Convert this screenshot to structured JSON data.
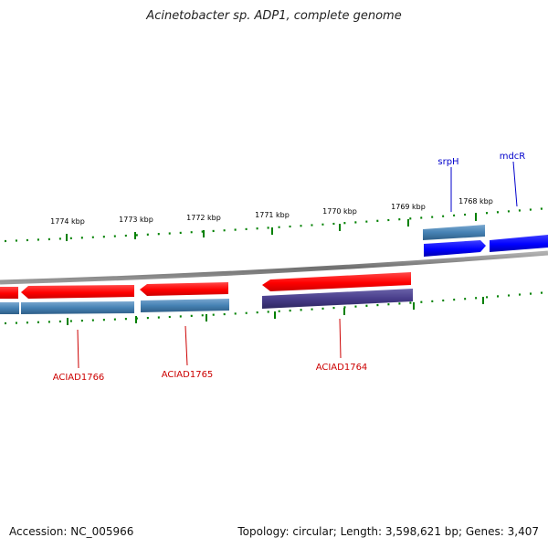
{
  "title": "Acinetobacter sp. ADP1, complete genome",
  "footer": {
    "accession": "Accession: NC_005966",
    "summary": "Topology: circular; Length: 3,598,621 bp; Genes: 3,407"
  },
  "ticks": [
    {
      "label": "1774 kbp"
    },
    {
      "label": "1773 kbp"
    },
    {
      "label": "1772 kbp"
    },
    {
      "label": "1771 kbp"
    },
    {
      "label": "1770 kbp"
    },
    {
      "label": "1769 kbp"
    },
    {
      "label": "1768 kbp"
    }
  ],
  "genes": {
    "srpH": {
      "label": "srpH",
      "color": "#0000cc"
    },
    "mdcR": {
      "label": "mdcR",
      "color": "#0000cc"
    },
    "ACIAD1766": {
      "label": "ACIAD1766",
      "color": "#cc0000"
    },
    "ACIAD1765": {
      "label": "ACIAD1765",
      "color": "#cc0000"
    },
    "ACIAD1764": {
      "label": "ACIAD1764",
      "color": "#cc0000"
    }
  },
  "colors": {
    "forward_gene": "#0000ff",
    "reverse_gene": "#ff0000",
    "cds_feature": "#4682b4",
    "cds_highlight": "#483d8b",
    "backbone": "#808080",
    "tick": "#008000"
  }
}
